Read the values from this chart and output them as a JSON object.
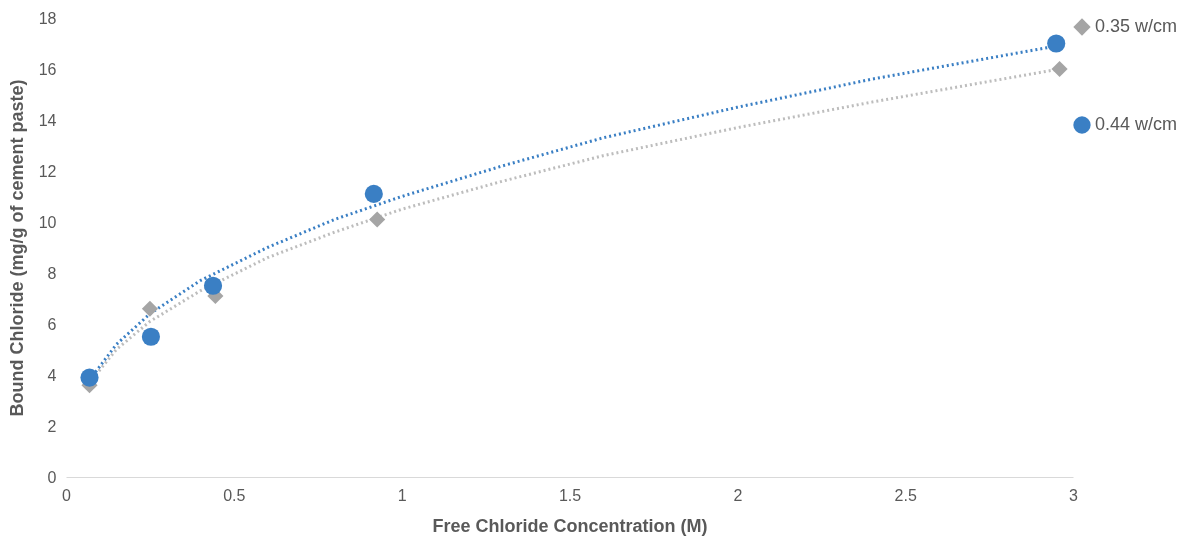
{
  "chart_data": {
    "type": "scatter",
    "xlabel": "Free Chloride Concentration (M)",
    "ylabel": "Bound Chloride (mg/g of cement paste)",
    "xlim": [
      0,
      3
    ],
    "xticks": [
      0,
      0.5,
      1,
      1.5,
      2,
      2.5,
      3
    ],
    "ylim": [
      0,
      18
    ],
    "yticks": [
      0,
      2,
      4,
      6,
      8,
      10,
      12,
      14,
      16,
      18
    ],
    "grid": false,
    "legend": "right",
    "series": [
      {
        "name": "0.35 w/cm",
        "marker": "diamond",
        "color": "#a5a5a5",
        "x": [
          0.07,
          0.25,
          0.445,
          0.927,
          2.96
        ],
        "values": [
          3.6,
          6.6,
          7.1,
          10.1,
          16.0
        ]
      },
      {
        "name": "0.44 w/cm",
        "marker": "circle",
        "color": "#3a7fc4",
        "x": [
          0.07,
          0.253,
          0.438,
          0.917,
          2.95
        ],
        "values": [
          3.9,
          5.5,
          7.5,
          11.1,
          17.0
        ]
      },
      {
        "type": "line",
        "line_style": "dotted",
        "color": "#bdbdbd",
        "x": [
          0.07,
          0.15,
          0.25,
          0.4,
          0.6,
          0.8,
          1.0,
          1.3,
          1.6,
          2.0,
          2.4,
          2.96
        ],
        "values": [
          3.7,
          5.0,
          6.1,
          7.3,
          8.6,
          9.6,
          10.5,
          11.6,
          12.6,
          13.7,
          14.7,
          16.0
        ]
      },
      {
        "type": "line",
        "line_style": "dotted",
        "color": "#3a7fc4",
        "x": [
          0.07,
          0.15,
          0.25,
          0.4,
          0.6,
          0.8,
          1.0,
          1.3,
          1.6,
          2.0,
          2.4,
          2.95
        ],
        "values": [
          3.8,
          5.2,
          6.4,
          7.7,
          9.0,
          10.1,
          11.0,
          12.2,
          13.3,
          14.5,
          15.6,
          16.9
        ]
      }
    ]
  }
}
